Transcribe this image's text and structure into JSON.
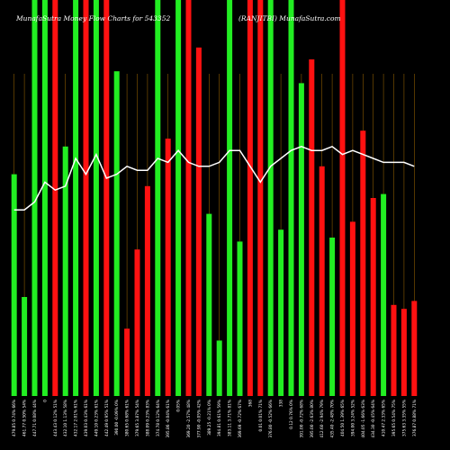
{
  "header": {
    "title_left": "MunafaSutra Money Flow Charts for 543352",
    "title_right": "(RANJITBI) MunafaSutra.com"
  },
  "chart_data": {
    "type": "bar",
    "title": "MunafaSutra Money Flow Charts for 543352 (RANJITBI) MunafaSutra.com",
    "colors": {
      "up": "#22ee22",
      "down": "#ff1111",
      "line": "#ffffff",
      "grid": "#8a5a00",
      "background": "#000000"
    },
    "ylim": [
      0,
      100
    ],
    "bars": [
      {
        "value": 56,
        "color": "up"
      },
      {
        "value": 25,
        "color": "up"
      },
      {
        "value": 100,
        "color": "up"
      },
      {
        "value": 100,
        "color": "up"
      },
      {
        "value": 100,
        "color": "down"
      },
      {
        "value": 63,
        "color": "up"
      },
      {
        "value": 100,
        "color": "up"
      },
      {
        "value": 100,
        "color": "down"
      },
      {
        "value": 100,
        "color": "up"
      },
      {
        "value": 100,
        "color": "down"
      },
      {
        "value": 82,
        "color": "up"
      },
      {
        "value": 17,
        "color": "down"
      },
      {
        "value": 37,
        "color": "down"
      },
      {
        "value": 53,
        "color": "down"
      },
      {
        "value": 100,
        "color": "up"
      },
      {
        "value": 65,
        "color": "down"
      },
      {
        "value": 100,
        "color": "up"
      },
      {
        "value": 100,
        "color": "down"
      },
      {
        "value": 88,
        "color": "down"
      },
      {
        "value": 46,
        "color": "up"
      },
      {
        "value": 14,
        "color": "up"
      },
      {
        "value": 100,
        "color": "up"
      },
      {
        "value": 39,
        "color": "up"
      },
      {
        "value": 100,
        "color": "down"
      },
      {
        "value": 100,
        "color": "down"
      },
      {
        "value": 100,
        "color": "up"
      },
      {
        "value": 42,
        "color": "up"
      },
      {
        "value": 100,
        "color": "up"
      },
      {
        "value": 79,
        "color": "up"
      },
      {
        "value": 85,
        "color": "down"
      },
      {
        "value": 58,
        "color": "down"
      },
      {
        "value": 40,
        "color": "up"
      },
      {
        "value": 100,
        "color": "down"
      },
      {
        "value": 44,
        "color": "down"
      },
      {
        "value": 67,
        "color": "down"
      },
      {
        "value": 50,
        "color": "down"
      },
      {
        "value": 51,
        "color": "up"
      },
      {
        "value": 23,
        "color": "down"
      },
      {
        "value": 22,
        "color": "down"
      },
      {
        "value": 24,
        "color": "down"
      }
    ],
    "line": [
      47,
      47,
      49,
      54,
      52,
      53,
      60,
      56,
      61,
      55,
      56,
      58,
      57,
      57,
      60,
      59,
      62,
      59,
      58,
      58,
      59,
      62,
      62,
      58,
      54,
      58,
      60,
      62,
      63,
      62,
      62,
      63,
      61,
      62,
      61,
      60,
      59,
      59,
      59,
      58
    ],
    "x_labels": [
      "479.85 0.74% 66%",
      "461.77 0.50% 54%",
      "447.71 0.08% 44%",
      "0",
      "443.43 0.12% 51%",
      "432.10 1.13% 58%",
      "432.17 2.01% 61%",
      "439.03 0.43% 61%",
      "449.10 0.23% 61%",
      "442.49 0.95% 51%",
      "390.00 -0.09% 0%",
      "380.65 0.68% 61%",
      "379.65 3.87% 54%",
      "388.09 0.23% 83%",
      "374.78 0.12% 64%",
      "395.86 -0.04% 61%",
      "0.05%",
      "369.20 -2.57% 48%",
      "377.90 -0.05% 42%",
      "389.25 -0.21% 0%",
      "394.81 0.61% 59%",
      "383.11 3.71% 81%",
      "369.69 -0.72% 67%",
      "368",
      "0.01 0.01% 71%",
      "376.80 -0.52% 66%",
      "338",
      "0.12 0.76% 0%",
      "391.00 -0.72% 68%",
      "395.00 -2.63% 80%",
      "412.60 -2.94% 79%",
      "435.40 -2.48% 70%",
      "404.50 1.39% 65%",
      "394.00 3.24% 52%",
      "404.05 -1.66% 63%",
      "434.30 -0.45% 64%",
      "410.47 2.33% 65%",
      "395.65 0.54% 75%",
      "375.63 3.35% 55%",
      "376.87 0.88% 71%"
    ]
  }
}
